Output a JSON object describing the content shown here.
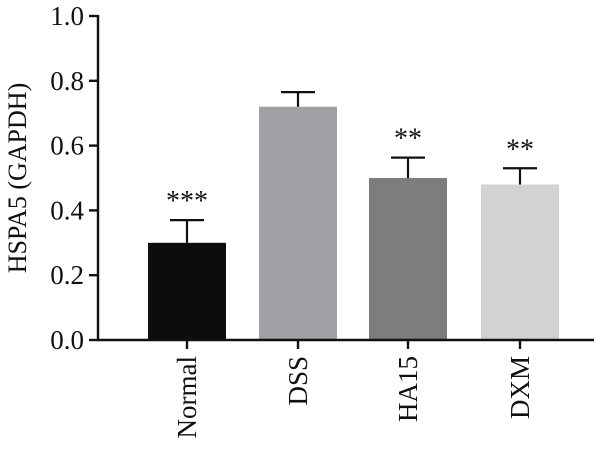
{
  "chart_data": {
    "type": "bar",
    "title": "",
    "xlabel": "",
    "ylabel": "HSPA5 (GAPDH)",
    "ylim": [
      0,
      1.0
    ],
    "yticks": [
      "0.0",
      "0.2",
      "0.4",
      "0.6",
      "0.8",
      "1.0"
    ],
    "categories": [
      "Normal",
      "DSS",
      "HA15",
      "DXM"
    ],
    "values": [
      0.3,
      0.72,
      0.5,
      0.48
    ],
    "errors": [
      0.07,
      0.045,
      0.063,
      0.05
    ],
    "significance": [
      "***",
      "",
      "**",
      "**"
    ],
    "colors": [
      "#0d0d0d",
      "#a0a0a5",
      "#7c7e7b",
      "#d2d2d2"
    ],
    "grid": false,
    "legend": "none"
  }
}
